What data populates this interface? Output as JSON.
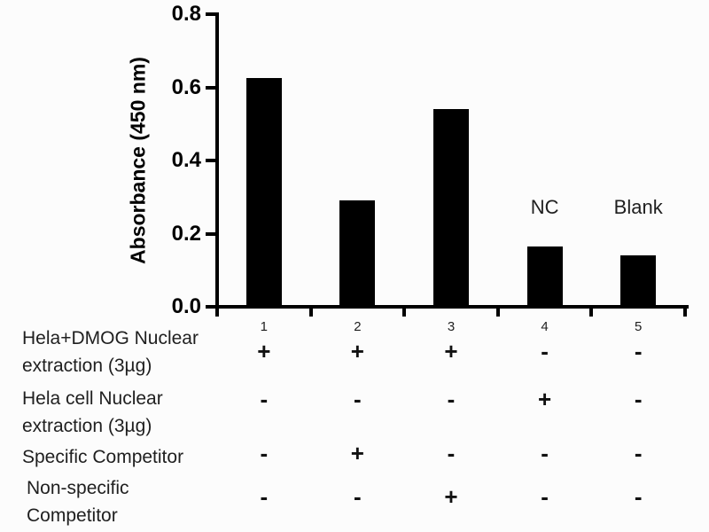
{
  "figure": {
    "background_color": "#fcfcfc",
    "bar_color": "#000000",
    "axis_color": "#000000",
    "text_color": "#1f1f1f"
  },
  "chart_data": {
    "type": "bar",
    "title": "",
    "ylabel": "Absorbance (450 nm)",
    "xlabel": "",
    "ylim": [
      0.0,
      0.8
    ],
    "ytick_labels": [
      "0.0",
      "0.2",
      "0.4",
      "0.6",
      "0.8"
    ],
    "grid": false,
    "legend": "none",
    "categories": [
      "1",
      "2",
      "3",
      "4",
      "5"
    ],
    "values": [
      0.625,
      0.29,
      0.54,
      0.165,
      0.14
    ],
    "bar_annotations": [
      "",
      "",
      "",
      "NC",
      "Blank"
    ]
  },
  "condition_table": {
    "rows": [
      {
        "label_lines": [
          "Hela+DMOG Nuclear",
          "extraction (3µg)"
        ],
        "values": [
          "+",
          "+",
          "+",
          "-",
          "-"
        ]
      },
      {
        "label_lines": [
          "Hela cell Nuclear",
          "extraction (3µg)"
        ],
        "values": [
          "-",
          "-",
          "-",
          "+",
          "-"
        ]
      },
      {
        "label_lines": [
          "Specific Competitor"
        ],
        "values": [
          "-",
          "+",
          "-",
          "-",
          "-"
        ]
      },
      {
        "label_lines": [
          "Non-specific",
          "Competitor"
        ],
        "values": [
          "-",
          "-",
          "+",
          "-",
          "-"
        ]
      }
    ]
  }
}
